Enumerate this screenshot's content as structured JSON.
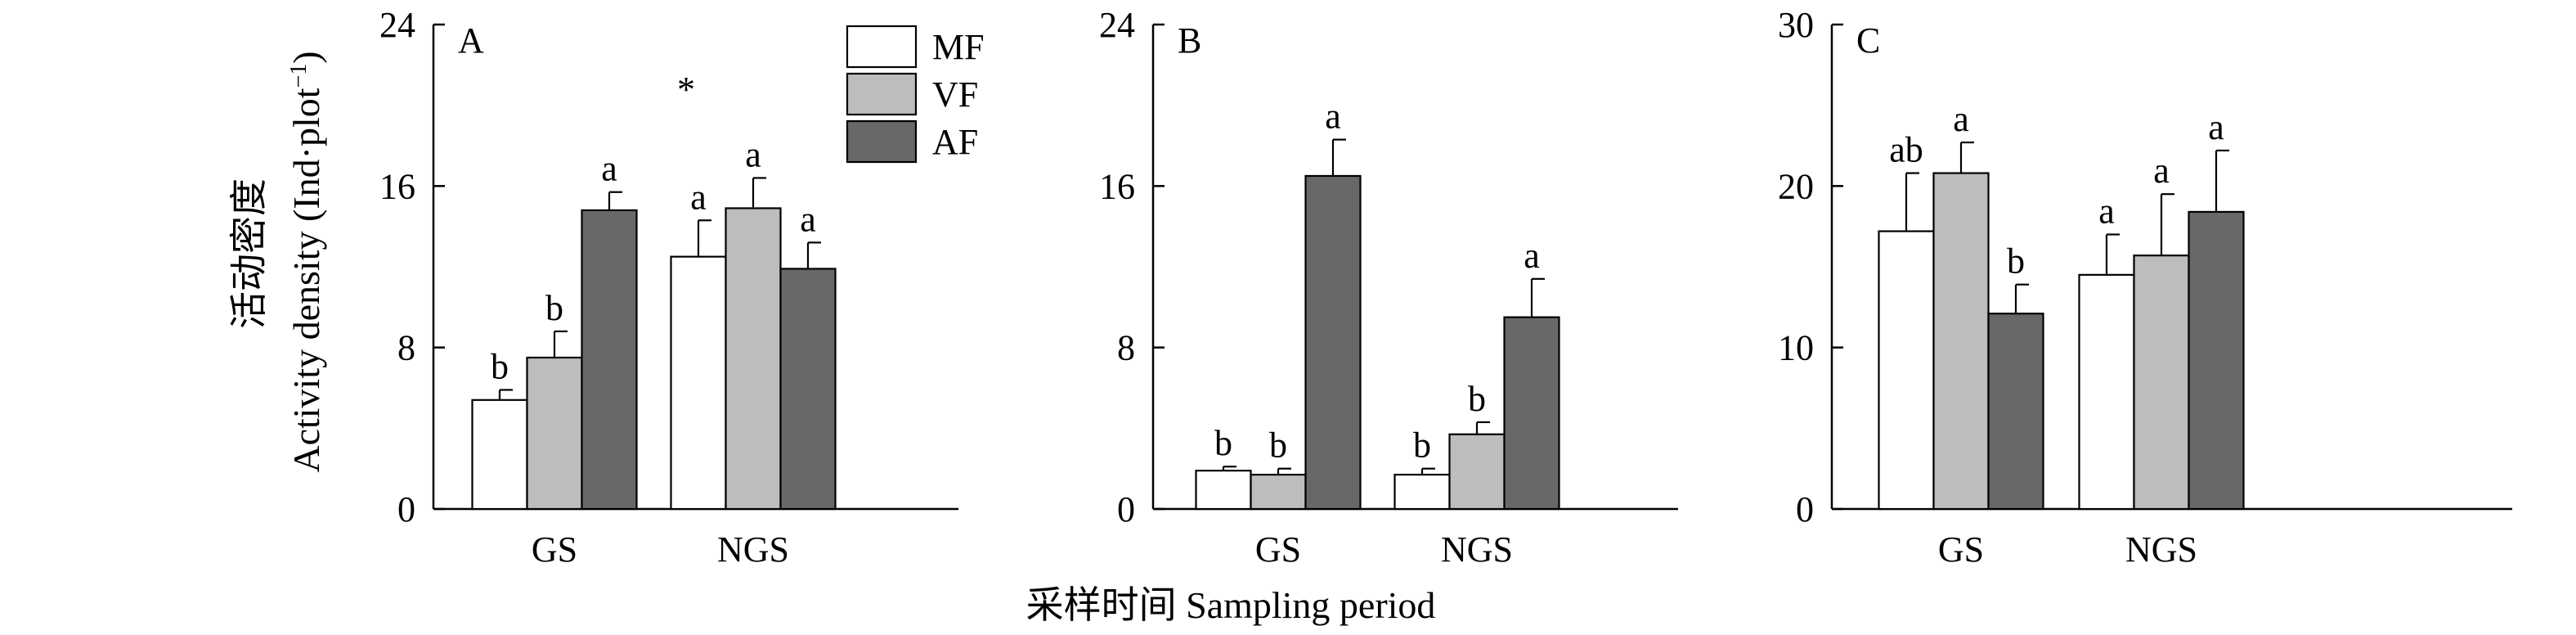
{
  "figure": {
    "ylabel_cn": "活动密度",
    "ylabel_en": "Activity density (Ind·plot",
    "ylabel_unit_sup": "−1",
    "ylabel_close": ")",
    "xlabel": "采样时间 Sampling period",
    "significance_mark": "*",
    "colors": {
      "MF": "#ffffff",
      "VF": "#bdbdbd",
      "AF": "#686868",
      "axis": "#000000"
    }
  },
  "chart_data": [
    {
      "type": "bar",
      "panel": "A",
      "categories": [
        "GS",
        "NGS"
      ],
      "series": [
        {
          "name": "MF",
          "values": [
            5.4,
            12.5
          ],
          "errors": [
            0.5,
            1.8
          ],
          "letters": [
            "b",
            "a"
          ]
        },
        {
          "name": "VF",
          "values": [
            7.5,
            14.9
          ],
          "errors": [
            1.3,
            1.5
          ],
          "letters": [
            "b",
            "a"
          ]
        },
        {
          "name": "AF",
          "values": [
            14.8,
            11.9
          ],
          "errors": [
            0.9,
            1.3
          ],
          "letters": [
            "a",
            "a"
          ]
        }
      ],
      "ylim": [
        0,
        24
      ],
      "yticks": [
        0,
        8,
        16,
        24
      ],
      "legend": "top-right",
      "grid": false
    },
    {
      "type": "bar",
      "panel": "B",
      "categories": [
        "GS",
        "NGS"
      ],
      "series": [
        {
          "name": "MF",
          "values": [
            1.9,
            1.7
          ],
          "errors": [
            0.2,
            0.3
          ],
          "letters": [
            "b",
            "b"
          ]
        },
        {
          "name": "VF",
          "values": [
            1.7,
            3.7
          ],
          "errors": [
            0.3,
            0.6
          ],
          "letters": [
            "b",
            "b"
          ]
        },
        {
          "name": "AF",
          "values": [
            16.5,
            9.5
          ],
          "errors": [
            1.8,
            1.9
          ],
          "letters": [
            "a",
            "a"
          ]
        }
      ],
      "ylim": [
        0,
        24
      ],
      "yticks": [
        0,
        8,
        16,
        24
      ],
      "grid": false
    },
    {
      "type": "bar",
      "panel": "C",
      "categories": [
        "GS",
        "NGS"
      ],
      "series": [
        {
          "name": "MF",
          "values": [
            17.2,
            14.5
          ],
          "errors": [
            3.6,
            2.5
          ],
          "letters": [
            "ab",
            "a"
          ]
        },
        {
          "name": "VF",
          "values": [
            20.8,
            15.7
          ],
          "errors": [
            1.9,
            3.8
          ],
          "letters": [
            "a",
            "a"
          ]
        },
        {
          "name": "AF",
          "values": [
            12.1,
            18.4
          ],
          "errors": [
            1.8,
            3.8
          ],
          "letters": [
            "b",
            "a"
          ]
        }
      ],
      "ylim": [
        0,
        30
      ],
      "yticks": [
        0,
        10,
        20,
        30
      ],
      "grid": false
    }
  ]
}
